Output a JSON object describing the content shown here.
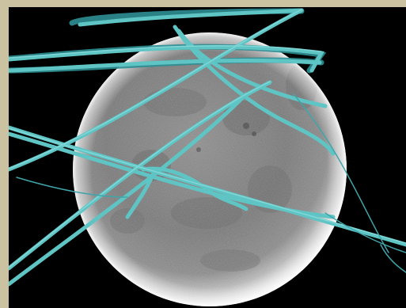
{
  "image": {
    "subject": "sphere-with-fibers",
    "colors": {
      "frame": "#cbc2a2",
      "background": "#000000",
      "sphere_light": "#f2f2f2",
      "sphere_mid": "#8d8d8d",
      "sphere_dark": "#5a5a5a",
      "fiber": "#5fc4c4",
      "fiber_dark": "#2f8f93"
    }
  }
}
